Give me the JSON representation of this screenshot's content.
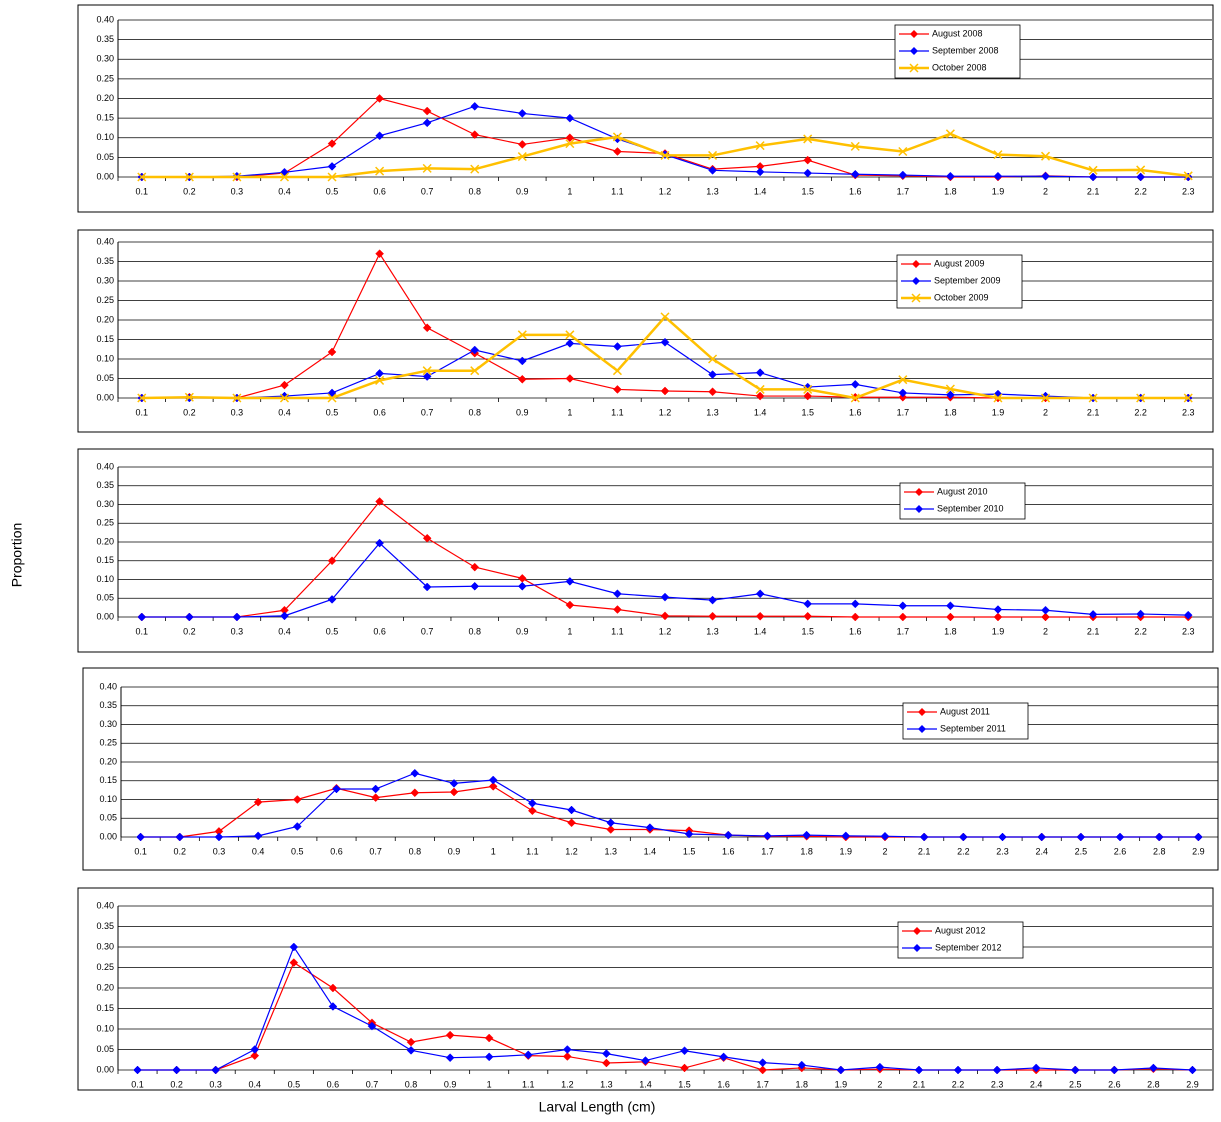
{
  "ylabel": "Proportion",
  "xlabel": "Larval  Length (cm)",
  "chart_data": [
    {
      "type": "line",
      "grid": true,
      "ylim": [
        0,
        0.4
      ],
      "yticks": [
        {
          "value": 0,
          "label": "0.00"
        },
        {
          "value": 0.05,
          "label": "0.05"
        },
        {
          "value": 0.1,
          "label": "0.10"
        },
        {
          "value": 0.15,
          "label": "0.15"
        },
        {
          "value": 0.2,
          "label": "0.20"
        },
        {
          "value": 0.25,
          "label": "0.25"
        },
        {
          "value": 0.3,
          "label": "0.30"
        },
        {
          "value": 0.35,
          "label": "0.35"
        },
        {
          "value": 0.4,
          "label": "0.40"
        }
      ],
      "categories": [
        "0.1",
        "0.2",
        "0.3",
        "0.4",
        "0.5",
        "0.6",
        "0.7",
        "0.8",
        "0.9",
        "1",
        "1.1",
        "1.2",
        "1.3",
        "1.4",
        "1.5",
        "1.6",
        "1.7",
        "1.8",
        "1.9",
        "2",
        "2.1",
        "2.2",
        "2.3"
      ],
      "series": [
        {
          "name": "August 2008",
          "color": "#ff0000",
          "marker": "diamond",
          "values": [
            0,
            0,
            0,
            0.01,
            0.085,
            0.2,
            0.168,
            0.108,
            0.083,
            0.1,
            0.065,
            0.06,
            0.02,
            0.027,
            0.043,
            0.005,
            0.003,
            0,
            0,
            0.003,
            0,
            0,
            0
          ]
        },
        {
          "name": "September 2008",
          "color": "#0000ff",
          "marker": "diamond",
          "values": [
            0,
            0,
            0.002,
            0.012,
            0.027,
            0.105,
            0.138,
            0.18,
            0.162,
            0.15,
            0.097,
            0.057,
            0.017,
            0.013,
            0.01,
            0.007,
            0.005,
            0.002,
            0.002,
            0.002,
            0,
            0,
            0
          ]
        },
        {
          "name": "October 2008",
          "color": "#ffc000",
          "marker": "x",
          "values": [
            0,
            0,
            0,
            0,
            0,
            0.015,
            0.022,
            0.02,
            0.052,
            0.085,
            0.102,
            0.055,
            0.055,
            0.08,
            0.097,
            0.078,
            0.065,
            0.11,
            0.057,
            0.053,
            0.017,
            0.018,
            0.003
          ]
        }
      ]
    },
    {
      "type": "line",
      "grid": true,
      "ylim": [
        0,
        0.4
      ],
      "yticks": [
        {
          "value": 0,
          "label": "0.00"
        },
        {
          "value": 0.05,
          "label": "0.05"
        },
        {
          "value": 0.1,
          "label": "0.10"
        },
        {
          "value": 0.15,
          "label": "0.15"
        },
        {
          "value": 0.2,
          "label": "0.20"
        },
        {
          "value": 0.25,
          "label": "0.25"
        },
        {
          "value": 0.3,
          "label": "0.30"
        },
        {
          "value": 0.35,
          "label": "0.35"
        },
        {
          "value": 0.4,
          "label": "0.40"
        }
      ],
      "categories": [
        "0.1",
        "0.2",
        "0.3",
        "0.4",
        "0.5",
        "0.6",
        "0.7",
        "0.8",
        "0.9",
        "1",
        "1.1",
        "1.2",
        "1.3",
        "1.4",
        "1.5",
        "1.6",
        "1.7",
        "1.8",
        "1.9",
        "2",
        "2.1",
        "2.2",
        "2.3"
      ],
      "series": [
        {
          "name": "August 2009",
          "color": "#ff0000",
          "marker": "diamond",
          "values": [
            0,
            0.002,
            0,
            0.033,
            0.118,
            0.37,
            0.18,
            0.115,
            0.048,
            0.05,
            0.022,
            0.018,
            0.016,
            0.005,
            0.005,
            0.002,
            0.002,
            0.002,
            0,
            0,
            0,
            0,
            0
          ]
        },
        {
          "name": "September 2009",
          "color": "#0000ff",
          "marker": "diamond",
          "values": [
            0,
            0,
            0,
            0.005,
            0.013,
            0.063,
            0.055,
            0.123,
            0.095,
            0.14,
            0.132,
            0.143,
            0.06,
            0.065,
            0.028,
            0.035,
            0.013,
            0.008,
            0.01,
            0.005,
            0,
            0,
            0
          ]
        },
        {
          "name": "October 2009",
          "color": "#ffc000",
          "marker": "x",
          "values": [
            0,
            0.002,
            0,
            0,
            0,
            0.045,
            0.07,
            0.07,
            0.162,
            0.162,
            0.07,
            0.208,
            0.1,
            0.022,
            0.022,
            0,
            0.047,
            0.023,
            0,
            0,
            0,
            0,
            0
          ]
        }
      ]
    },
    {
      "type": "line",
      "grid": true,
      "ylim": [
        0,
        0.4
      ],
      "yticks": [
        {
          "value": 0,
          "label": "0.00"
        },
        {
          "value": 0.05,
          "label": "0.05"
        },
        {
          "value": 0.1,
          "label": "0.10"
        },
        {
          "value": 0.15,
          "label": "0.15"
        },
        {
          "value": 0.2,
          "label": "0.20"
        },
        {
          "value": 0.25,
          "label": "0.25"
        },
        {
          "value": 0.3,
          "label": "0.30"
        },
        {
          "value": 0.35,
          "label": "0.35"
        },
        {
          "value": 0.4,
          "label": "0.40"
        }
      ],
      "categories": [
        "0.1",
        "0.2",
        "0.3",
        "0.4",
        "0.5",
        "0.6",
        "0.7",
        "0.8",
        "0.9",
        "1",
        "1.1",
        "1.2",
        "1.3",
        "1.4",
        "1.5",
        "1.6",
        "1.7",
        "1.8",
        "1.9",
        "2",
        "2.1",
        "2.2",
        "2.3"
      ],
      "series": [
        {
          "name": "August 2010",
          "color": "#ff0000",
          "marker": "diamond",
          "values": [
            0,
            0,
            0,
            0.018,
            0.15,
            0.308,
            0.21,
            0.133,
            0.103,
            0.032,
            0.02,
            0.003,
            0.002,
            0.002,
            0.002,
            0,
            0,
            0,
            0,
            0,
            0,
            0,
            0
          ]
        },
        {
          "name": "September 2010",
          "color": "#0000ff",
          "marker": "diamond",
          "values": [
            0,
            0,
            0,
            0.003,
            0.047,
            0.197,
            0.08,
            0.082,
            0.082,
            0.095,
            0.062,
            0.053,
            0.045,
            0.062,
            0.035,
            0.035,
            0.03,
            0.03,
            0.02,
            0.018,
            0.007,
            0.008,
            0.005
          ]
        }
      ]
    },
    {
      "type": "line",
      "grid": true,
      "ylim": [
        0,
        0.4
      ],
      "yticks": [
        {
          "value": 0,
          "label": "0.00"
        },
        {
          "value": 0.05,
          "label": "0.05"
        },
        {
          "value": 0.1,
          "label": "0.10"
        },
        {
          "value": 0.15,
          "label": "0.15"
        },
        {
          "value": 0.2,
          "label": "0.20"
        },
        {
          "value": 0.25,
          "label": "0.25"
        },
        {
          "value": 0.3,
          "label": "0.30"
        },
        {
          "value": 0.35,
          "label": "0.35"
        },
        {
          "value": 0.4,
          "label": "0.40"
        }
      ],
      "categories": [
        "0.1",
        "0.2",
        "0.3",
        "0.4",
        "0.5",
        "0.6",
        "0.7",
        "0.8",
        "0.9",
        "1",
        "1.1",
        "1.2",
        "1.3",
        "1.4",
        "1.5",
        "1.6",
        "1.7",
        "1.8",
        "1.9",
        "2",
        "2.1",
        "2.2",
        "2.3",
        "2.4",
        "2.5",
        "2.6",
        "2.8",
        "2.9"
      ],
      "series": [
        {
          "name": "August 2011",
          "color": "#ff0000",
          "marker": "diamond",
          "values": [
            0,
            0,
            0.015,
            0.093,
            0.1,
            0.13,
            0.105,
            0.118,
            0.12,
            0.135,
            0.07,
            0.038,
            0.02,
            0.02,
            0.017,
            0.005,
            0.002,
            0.002,
            0,
            0,
            0,
            0,
            0,
            0,
            0,
            0,
            0,
            0
          ]
        },
        {
          "name": "September 2011",
          "color": "#0000ff",
          "marker": "diamond",
          "values": [
            0,
            0,
            0,
            0.003,
            0.028,
            0.128,
            0.128,
            0.17,
            0.143,
            0.152,
            0.09,
            0.072,
            0.038,
            0.025,
            0.008,
            0.005,
            0.003,
            0.005,
            0.003,
            0.002,
            0,
            0,
            0,
            0,
            0,
            0,
            0,
            0
          ]
        }
      ]
    },
    {
      "type": "line",
      "grid": true,
      "ylim": [
        0,
        0.4
      ],
      "yticks": [
        {
          "value": 0,
          "label": "0.00"
        },
        {
          "value": 0.05,
          "label": "0.05"
        },
        {
          "value": 0.1,
          "label": "0.10"
        },
        {
          "value": 0.15,
          "label": "0.15"
        },
        {
          "value": 0.2,
          "label": "0.20"
        },
        {
          "value": 0.25,
          "label": "0.25"
        },
        {
          "value": 0.3,
          "label": "0.30"
        },
        {
          "value": 0.35,
          "label": "0.35"
        },
        {
          "value": 0.4,
          "label": "0.40"
        }
      ],
      "categories": [
        "0.1",
        "0.2",
        "0.3",
        "0.4",
        "0.5",
        "0.6",
        "0.7",
        "0.8",
        "0.9",
        "1",
        "1.1",
        "1.2",
        "1.3",
        "1.4",
        "1.5",
        "1.6",
        "1.7",
        "1.8",
        "1.9",
        "2",
        "2.1",
        "2.2",
        "2.3",
        "2.4",
        "2.5",
        "2.6",
        "2.8",
        "2.9"
      ],
      "series": [
        {
          "name": "August 2012",
          "color": "#ff0000",
          "marker": "diamond",
          "values": [
            0,
            0,
            0,
            0.035,
            0.262,
            0.2,
            0.115,
            0.068,
            0.085,
            0.078,
            0.035,
            0.033,
            0.017,
            0.02,
            0.005,
            0.03,
            0,
            0.005,
            0,
            0.002,
            0,
            0,
            0,
            0,
            0,
            0,
            0.003,
            0
          ]
        },
        {
          "name": "September 2012",
          "color": "#0000ff",
          "marker": "diamond",
          "values": [
            0,
            0,
            0,
            0.05,
            0.3,
            0.155,
            0.107,
            0.048,
            0.03,
            0.032,
            0.037,
            0.05,
            0.04,
            0.023,
            0.047,
            0.032,
            0.018,
            0.012,
            0,
            0.007,
            0,
            0,
            0,
            0.005,
            0,
            0,
            0.005,
            0
          ]
        }
      ]
    }
  ]
}
